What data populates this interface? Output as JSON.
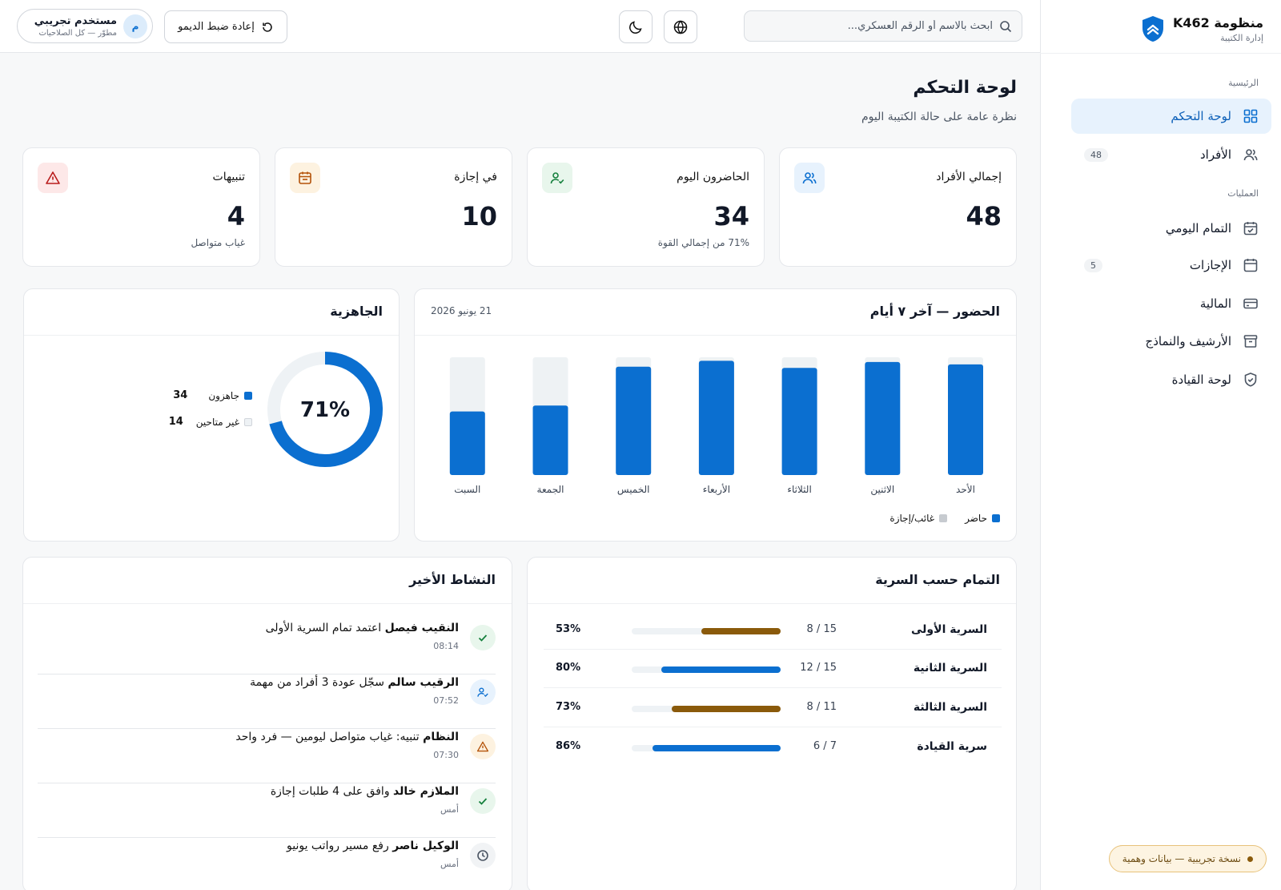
{
  "brand": {
    "title": "منظومة K462",
    "subtitle": "إدارة الكتيبة"
  },
  "sidebar": {
    "sections": [
      "الرئيسية",
      "العمليات"
    ],
    "items": [
      {
        "label": "لوحة التحكم",
        "icon": "dashboard-icon",
        "active": true
      },
      {
        "label": "الأفراد",
        "icon": "users-icon",
        "badge": "48"
      },
      {
        "label": "التمام اليومي",
        "icon": "calendar-check-icon"
      },
      {
        "label": "الإجازات",
        "icon": "calendar-icon",
        "badge": "5"
      },
      {
        "label": "المالية",
        "icon": "credit-card-icon"
      },
      {
        "label": "الأرشيف والنماذج",
        "icon": "archive-icon"
      },
      {
        "label": "لوحة القيادة",
        "icon": "shield-icon"
      }
    ],
    "demo_label": "نسخة تجريبية — بيانات وهمية"
  },
  "header": {
    "search_placeholder": "ابحث بالاسم أو الرقم العسكري...",
    "reset_label": "إعادة ضبط الديمو",
    "user": {
      "initial": "م",
      "name": "مستخدم تجريبي",
      "role": "مطوّر — كل الصلاحيات"
    }
  },
  "page": {
    "title": "لوحة التحكم",
    "subtitle": "نظرة عامة على حالة الكتيبة اليوم"
  },
  "stats": [
    {
      "title": "إجمالي الأفراد",
      "value": "48",
      "footer": "",
      "icon": "users-icon",
      "color": "#0b6fd0",
      "bg": "#e7f2fd"
    },
    {
      "title": "الحاضرون اليوم",
      "value": "34",
      "footer": "71% من إجمالي القوة",
      "icon": "user-check-icon",
      "color": "#15803d",
      "bg": "#e8f6ec"
    },
    {
      "title": "في إجازة",
      "value": "10",
      "footer": "",
      "icon": "calendar-icon",
      "color": "#b45309",
      "bg": "#fdf2e0"
    },
    {
      "title": "تنبيهات",
      "value": "4",
      "footer": "غياب متواصل",
      "icon": "alert-icon",
      "color": "#b91c1c",
      "bg": "#fde8e8"
    }
  ],
  "attendance": {
    "title": "الحضور — آخر ٧ أيام",
    "date": "21 يونيو 2026",
    "legend_present": "حاضر",
    "legend_absent": "غائب/إجازة"
  },
  "readiness": {
    "title": "الجاهزية",
    "percent_label": "71%",
    "ready_label": "جاهزون",
    "ready_value": "34",
    "not_ready_label": "غير متاحين",
    "not_ready_value": "14"
  },
  "chart_data": [
    {
      "type": "bar",
      "title": "الحضور — آخر ٧ أيام",
      "categories": [
        "الأحد",
        "الاثنين",
        "الثلاثاء",
        "الأربعاء",
        "الخميس",
        "الجمعة",
        "السبت"
      ],
      "series": [
        {
          "name": "حاضر",
          "values": [
            94,
            96,
            91,
            97,
            92,
            59,
            54
          ]
        },
        {
          "name": "غائب/إجازة",
          "values": [
            6,
            4,
            9,
            3,
            8,
            41,
            46
          ]
        }
      ],
      "ylim": [
        0,
        100
      ],
      "colors": {
        "present": "#0b6fd0",
        "absent": "#eef2f4"
      }
    },
    {
      "type": "pie",
      "title": "الجاهزية",
      "labels": [
        "جاهزون",
        "غير متاحين"
      ],
      "values": [
        34,
        14
      ],
      "colors": [
        "#0b6fd0",
        "#eef2f5"
      ]
    }
  ],
  "activity": {
    "title": "النشاط الأخير",
    "items": [
      {
        "actor": "النقيب فيصل",
        "text": "اعتمد تمام السرية الأولى",
        "time": "08:14",
        "icon": "check-icon",
        "color": "#15803d",
        "bg": "#e8f6ec"
      },
      {
        "actor": "الرقيب سالم",
        "text": "سجّل عودة 3 أفراد من مهمة",
        "time": "07:52",
        "icon": "user-check-icon",
        "color": "#0b6fd0",
        "bg": "#e7f2fd"
      },
      {
        "actor": "النظام",
        "text": "تنبيه: غياب متواصل ليومين — فرد واحد",
        "time": "07:30",
        "icon": "alert-icon",
        "color": "#b45309",
        "bg": "#fdf2e0"
      },
      {
        "actor": "الملازم خالد",
        "text": "وافق على 4 طلبات إجازة",
        "time": "أمس",
        "icon": "check-icon",
        "color": "#15803d",
        "bg": "#e8f6ec"
      },
      {
        "actor": "الوكيل ناصر",
        "text": "رفع مسير رواتب يونيو",
        "time": "أمس",
        "icon": "clock-icon",
        "color": "#4b5563",
        "bg": "#f1f3f5"
      }
    ]
  },
  "units": {
    "title": "التمام حسب السرية",
    "rows": [
      {
        "name": "السرية الأولى",
        "count": "8 / 15",
        "percent": 53,
        "percent_label": "53%",
        "color": "#8a5a0b"
      },
      {
        "name": "السرية الثانية",
        "count": "12 / 15",
        "percent": 80,
        "percent_label": "80%",
        "color": "#0b6fd0"
      },
      {
        "name": "السرية الثالثة",
        "count": "8 / 11",
        "percent": 73,
        "percent_label": "73%",
        "color": "#8a5a0b"
      },
      {
        "name": "سرية القيادة",
        "count": "6 / 7",
        "percent": 86,
        "percent_label": "86%",
        "color": "#0b6fd0"
      }
    ]
  }
}
